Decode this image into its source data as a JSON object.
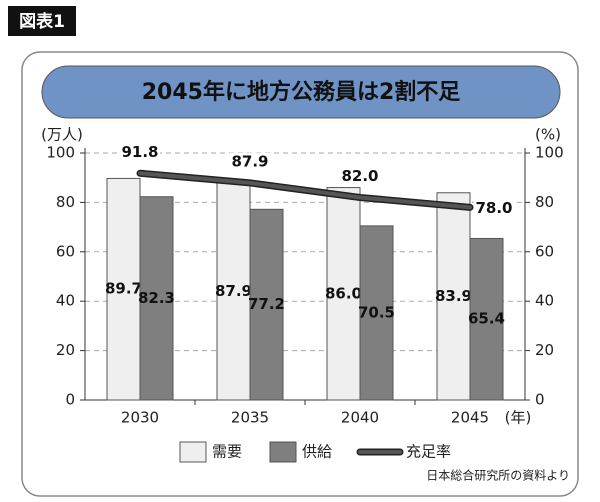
{
  "chart_data": {
    "type": "bar_line",
    "figure_label": "図表1",
    "title": "2045年に地方公務員は2割不足",
    "y_label": "(万人)",
    "y2_label": "(%)",
    "x_label": "(年)",
    "categories": [
      "2030",
      "2035",
      "2040",
      "2045"
    ],
    "series": [
      {
        "name": "需要",
        "type": "bar",
        "color": "#efefef",
        "values": [
          89.7,
          87.9,
          86.0,
          83.9
        ],
        "value_labels": [
          "89.7",
          "87.9",
          "86.0",
          "83.9"
        ]
      },
      {
        "name": "供給",
        "type": "bar",
        "color": "#7f7f7f",
        "values": [
          82.3,
          77.2,
          70.5,
          65.4
        ]
      },
      {
        "name": "充足率",
        "type": "line",
        "axis": "y2",
        "color": "#555555",
        "values": [
          91.8,
          87.9,
          82.0,
          78.0
        ],
        "value_labels": [
          "91.8",
          "87.9",
          "82.0",
          "78.0"
        ]
      }
    ],
    "ylim": [
      0,
      100
    ],
    "yticks": [
      0,
      20,
      40,
      60,
      80,
      100
    ],
    "y2lim": [
      0,
      100
    ],
    "y2ticks": [
      0,
      20,
      40,
      60,
      80,
      100
    ],
    "grid": true,
    "source": "日本総合研究所の資料より"
  }
}
